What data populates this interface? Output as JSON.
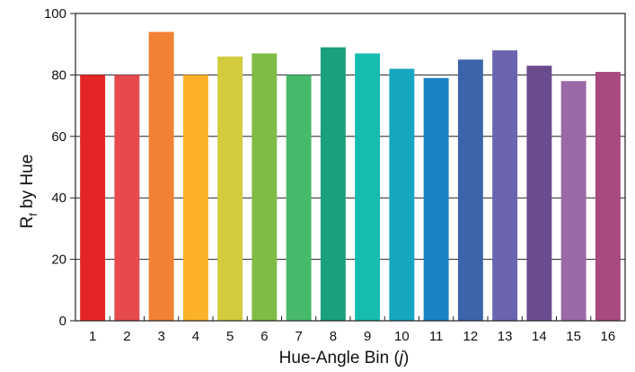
{
  "chart_data": {
    "type": "bar",
    "title": "",
    "xlabel_prefix": "Hue-Angle Bin (",
    "xlabel_var": "j",
    "xlabel_suffix": ")",
    "ylabel_main": "R",
    "ylabel_sub": "f",
    "ylabel_rest": " by Hue",
    "ylim": [
      0,
      100
    ],
    "yticks": [
      0,
      20,
      40,
      60,
      80,
      100
    ],
    "grid": "horizontal",
    "legend": "none",
    "categories": [
      "1",
      "2",
      "3",
      "4",
      "5",
      "6",
      "7",
      "8",
      "9",
      "10",
      "11",
      "12",
      "13",
      "14",
      "15",
      "16"
    ],
    "values": [
      80,
      80,
      94,
      80,
      86,
      87,
      80,
      89,
      87,
      82,
      79,
      85,
      88,
      83,
      78,
      81
    ],
    "colors": [
      "#e42526",
      "#e64a4c",
      "#f28233",
      "#fbb22a",
      "#d2cc3d",
      "#7ebc45",
      "#48b96b",
      "#1aa07b",
      "#16bcb0",
      "#17a6c0",
      "#1784c6",
      "#3b64a9",
      "#6b65b0",
      "#6a4c8e",
      "#9b69a7",
      "#a8497f"
    ]
  }
}
